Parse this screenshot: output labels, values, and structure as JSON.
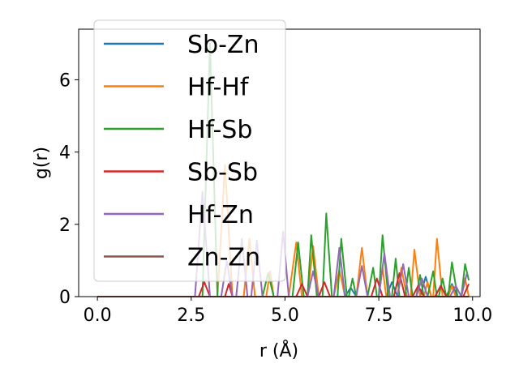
{
  "chart_data": {
    "type": "line",
    "title": "",
    "xlabel": "r (Å)",
    "ylabel": "g(r)",
    "xlim": [
      -0.5,
      10.2
    ],
    "ylim": [
      0,
      7.4
    ],
    "xticks": [
      "0.0",
      "2.5",
      "5.0",
      "7.5",
      "10.0"
    ],
    "xtick_values": [
      0,
      2.5,
      5,
      7.5,
      10
    ],
    "yticks": [
      "0",
      "2",
      "4",
      "6"
    ],
    "ytick_values": [
      0,
      2,
      4,
      6
    ],
    "grid": false,
    "legend_position": "upper-left",
    "series": [
      {
        "name": "Sb-Zn",
        "color": "#1f77b4",
        "points": [
          [
            0,
            0
          ],
          [
            6.6,
            0
          ],
          [
            6.75,
            0.25
          ],
          [
            6.9,
            0
          ],
          [
            7.7,
            0
          ],
          [
            7.85,
            0.4
          ],
          [
            8.0,
            0
          ],
          [
            8.6,
            0
          ],
          [
            8.75,
            0.55
          ],
          [
            8.9,
            0
          ],
          [
            9.3,
            0
          ],
          [
            9.45,
            0.35
          ],
          [
            9.6,
            0
          ],
          [
            9.9,
            0
          ]
        ]
      },
      {
        "name": "Hf-Hf",
        "color": "#ff7f0e",
        "points": [
          [
            0,
            0
          ],
          [
            3.2,
            0
          ],
          [
            3.4,
            3.65
          ],
          [
            3.6,
            0
          ],
          [
            3.9,
            0
          ],
          [
            4.05,
            1.6
          ],
          [
            4.2,
            0
          ],
          [
            4.5,
            0
          ],
          [
            4.6,
            0.7
          ],
          [
            4.7,
            0
          ],
          [
            5.1,
            0
          ],
          [
            5.3,
            1.5
          ],
          [
            5.45,
            0
          ],
          [
            5.6,
            0
          ],
          [
            5.75,
            1.4
          ],
          [
            5.9,
            0
          ],
          [
            6.3,
            0
          ],
          [
            6.45,
            0.75
          ],
          [
            6.6,
            0
          ],
          [
            6.9,
            0
          ],
          [
            7.05,
            1.35
          ],
          [
            7.2,
            0
          ],
          [
            7.5,
            0
          ],
          [
            7.6,
            0.8
          ],
          [
            7.7,
            0
          ],
          [
            8.0,
            0
          ],
          [
            8.1,
            0.8
          ],
          [
            8.25,
            0
          ],
          [
            8.35,
            0
          ],
          [
            8.45,
            1.3
          ],
          [
            8.6,
            0
          ],
          [
            8.7,
            0
          ],
          [
            8.8,
            0.4
          ],
          [
            8.9,
            0
          ],
          [
            8.95,
            0
          ],
          [
            9.05,
            1.6
          ],
          [
            9.2,
            0
          ],
          [
            9.35,
            0
          ],
          [
            9.45,
            0.3
          ],
          [
            9.55,
            0
          ],
          [
            9.7,
            0
          ],
          [
            9.8,
            0.5
          ],
          [
            9.9,
            0
          ]
        ]
      },
      {
        "name": "Hf-Sb",
        "color": "#2ca02c",
        "points": [
          [
            0,
            0
          ],
          [
            2.8,
            0
          ],
          [
            3.0,
            7.0
          ],
          [
            3.2,
            0
          ],
          [
            4.4,
            0
          ],
          [
            4.55,
            0.65
          ],
          [
            4.7,
            0
          ],
          [
            5.2,
            0
          ],
          [
            5.35,
            1.5
          ],
          [
            5.5,
            0
          ],
          [
            5.6,
            0
          ],
          [
            5.7,
            1.7
          ],
          [
            5.85,
            0
          ],
          [
            6.0,
            0
          ],
          [
            6.1,
            2.3
          ],
          [
            6.25,
            0
          ],
          [
            6.4,
            0
          ],
          [
            6.5,
            1.6
          ],
          [
            6.65,
            0
          ],
          [
            6.7,
            0
          ],
          [
            6.8,
            0.5
          ],
          [
            6.9,
            0
          ],
          [
            7.2,
            0
          ],
          [
            7.35,
            0.8
          ],
          [
            7.45,
            0
          ],
          [
            7.5,
            0
          ],
          [
            7.6,
            1.7
          ],
          [
            7.75,
            0
          ],
          [
            7.85,
            0
          ],
          [
            7.95,
            1.05
          ],
          [
            8.05,
            0
          ],
          [
            8.2,
            0
          ],
          [
            8.3,
            0.8
          ],
          [
            8.4,
            0
          ],
          [
            8.5,
            0
          ],
          [
            8.6,
            0.6
          ],
          [
            8.7,
            0
          ],
          [
            8.8,
            0
          ],
          [
            8.95,
            0.7
          ],
          [
            9.05,
            0
          ],
          [
            9.1,
            0
          ],
          [
            9.2,
            0.5
          ],
          [
            9.3,
            0
          ],
          [
            9.35,
            0
          ],
          [
            9.45,
            0.95
          ],
          [
            9.6,
            0
          ],
          [
            9.7,
            0
          ],
          [
            9.8,
            0.9
          ],
          [
            9.9,
            0.45
          ]
        ]
      },
      {
        "name": "Sb-Sb",
        "color": "#d62728",
        "points": [
          [
            0,
            0
          ],
          [
            2.7,
            0
          ],
          [
            2.85,
            0.4
          ],
          [
            3.0,
            0
          ],
          [
            3.4,
            0
          ],
          [
            3.5,
            0.35
          ],
          [
            3.6,
            0
          ],
          [
            5.3,
            0
          ],
          [
            5.45,
            0.35
          ],
          [
            5.6,
            0
          ],
          [
            5.9,
            0
          ],
          [
            6.05,
            0.4
          ],
          [
            6.2,
            0
          ],
          [
            7.3,
            0
          ],
          [
            7.45,
            0.5
          ],
          [
            7.6,
            0
          ],
          [
            7.9,
            0
          ],
          [
            8.05,
            0.65
          ],
          [
            8.2,
            0
          ],
          [
            8.4,
            0
          ],
          [
            8.55,
            0.3
          ],
          [
            8.7,
            0
          ],
          [
            9.0,
            0
          ],
          [
            9.15,
            0.3
          ],
          [
            9.3,
            0
          ],
          [
            9.75,
            0
          ],
          [
            9.9,
            0.35
          ]
        ]
      },
      {
        "name": "Hf-Zn",
        "color": "#9467bd",
        "points": [
          [
            0,
            0
          ],
          [
            2.6,
            0
          ],
          [
            2.8,
            2.9
          ],
          [
            3.0,
            0
          ],
          [
            3.3,
            0
          ],
          [
            3.45,
            1.0
          ],
          [
            3.6,
            0
          ],
          [
            3.7,
            0
          ],
          [
            3.85,
            1.6
          ],
          [
            4.0,
            0
          ],
          [
            4.1,
            0
          ],
          [
            4.25,
            1.55
          ],
          [
            4.4,
            0
          ],
          [
            4.8,
            0
          ],
          [
            4.95,
            1.8
          ],
          [
            5.1,
            0
          ],
          [
            5.6,
            0
          ],
          [
            5.75,
            0.7
          ],
          [
            5.9,
            0
          ],
          [
            6.3,
            0
          ],
          [
            6.45,
            1.35
          ],
          [
            6.6,
            0
          ],
          [
            6.9,
            0
          ],
          [
            7.05,
            0.85
          ],
          [
            7.2,
            0
          ],
          [
            7.5,
            0
          ],
          [
            7.65,
            1.2
          ],
          [
            7.8,
            0
          ],
          [
            8.0,
            0
          ],
          [
            8.15,
            0.9
          ],
          [
            8.3,
            0
          ],
          [
            8.5,
            0
          ],
          [
            8.65,
            0.5
          ],
          [
            8.8,
            0
          ],
          [
            9.4,
            0
          ],
          [
            9.55,
            0.3
          ],
          [
            9.7,
            0
          ],
          [
            9.85,
            0.65
          ]
        ]
      },
      {
        "name": "Zn-Zn",
        "color": "#8c564b",
        "points": [
          [
            0,
            0
          ],
          [
            9.9,
            0
          ]
        ]
      }
    ]
  }
}
